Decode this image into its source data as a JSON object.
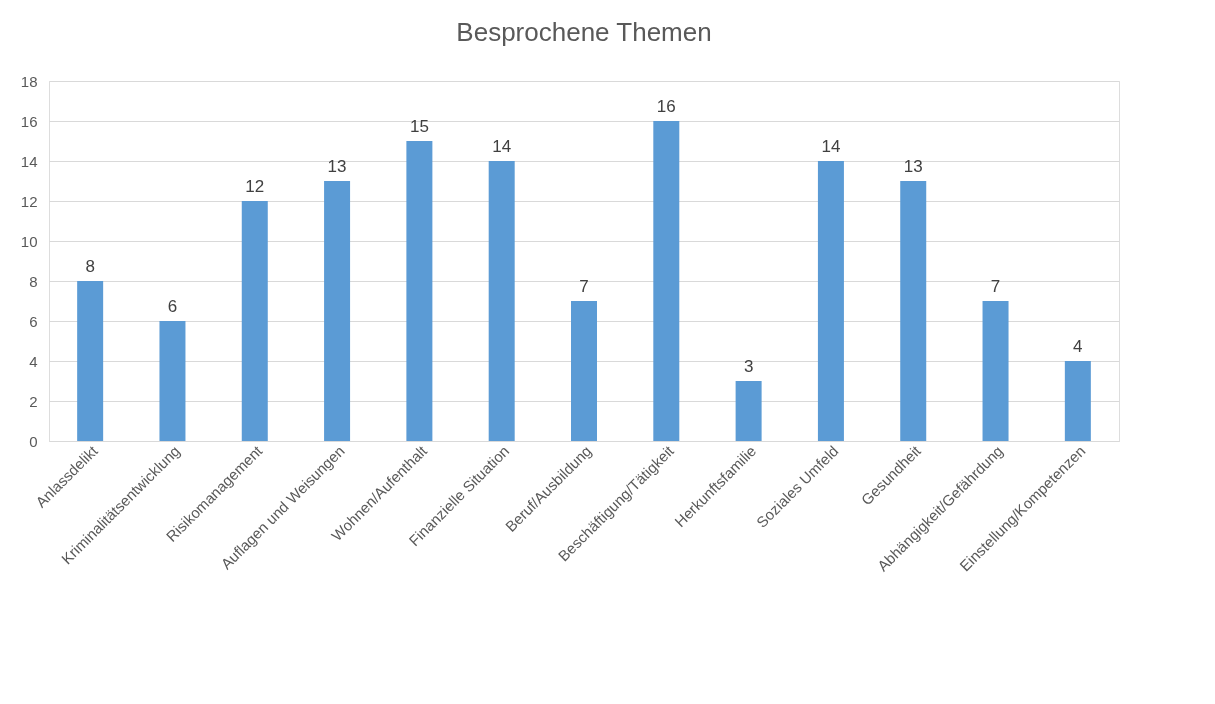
{
  "chart_data": {
    "type": "bar",
    "title": "Besprochene Themen",
    "categories": [
      "Anlassdelikt",
      "Kriminalitätsentwicklung",
      "Risikomanagement",
      "Auflagen und Weisungen",
      "Wohnen/Aufenthalt",
      "Finanzielle Situation",
      "Beruf/Ausbildung",
      "Beschäftigung/Tätigkeit",
      "Herkunftsfamilie",
      "Soziales Umfeld",
      "Gesundheit",
      "Abhängigkeit/Gefährdung",
      "Einstellung/Kompetenzen"
    ],
    "values": [
      8,
      6,
      12,
      13,
      15,
      14,
      7,
      16,
      3,
      14,
      13,
      7,
      4
    ],
    "color": "#5b9bd5",
    "ylim": [
      0,
      18
    ],
    "yticks": [
      0,
      2,
      4,
      6,
      8,
      10,
      12,
      14,
      16,
      18
    ],
    "grid": "y",
    "data_labels": true
  }
}
